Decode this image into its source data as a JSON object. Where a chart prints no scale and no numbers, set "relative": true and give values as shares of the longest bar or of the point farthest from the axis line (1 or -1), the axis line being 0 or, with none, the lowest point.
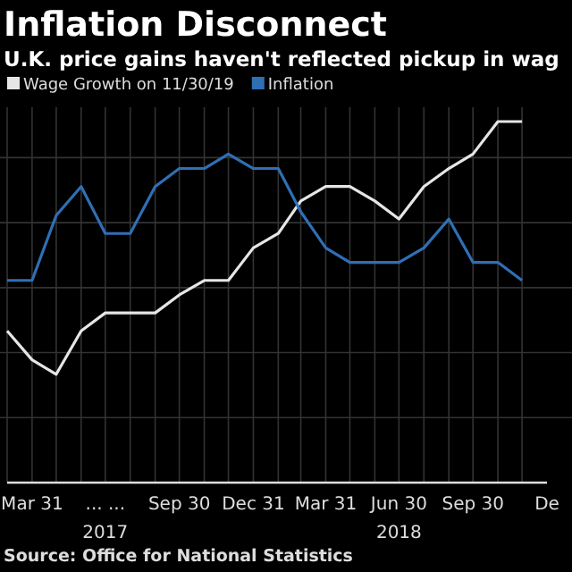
{
  "chart_data": {
    "type": "line",
    "title": "Inflation Disconnect",
    "subtitle": "U.K. price gains haven't reflected pickup in wag",
    "x": [
      "2017-02-28",
      "2017-03-31",
      "2017-04-30",
      "2017-05-31",
      "2017-06-30",
      "2017-07-31",
      "2017-08-31",
      "2017-09-30",
      "2017-10-31",
      "2017-11-30",
      "2017-12-31",
      "2018-01-31",
      "2018-02-28",
      "2018-03-31",
      "2018-04-30",
      "2018-05-31",
      "2018-06-30",
      "2018-07-31",
      "2018-08-31",
      "2018-09-30",
      "2018-10-31",
      "2018-11-30"
    ],
    "series": [
      {
        "name": "Wage Growth on 11/30/19",
        "color": "#e6e6e6",
        "values": [
          0.42,
          0.34,
          0.3,
          0.42,
          0.47,
          0.47,
          0.47,
          0.52,
          0.56,
          0.56,
          0.65,
          0.69,
          0.78,
          0.82,
          0.82,
          0.78,
          0.73,
          0.82,
          0.87,
          0.91,
          1,
          1
        ]
      },
      {
        "name": "Inflation",
        "color": "#2f6fb5",
        "values": [
          0.56,
          0.56,
          0.74,
          0.82,
          0.69,
          0.69,
          0.82,
          0.87,
          0.87,
          0.91,
          0.87,
          0.87,
          0.75,
          0.65,
          0.61,
          0.61,
          0.61,
          0.65,
          0.73,
          0.61,
          0.61,
          0.56
        ]
      }
    ],
    "relative": true,
    "xlim": [
      "2017-02-28",
      "2018-12-31"
    ],
    "xticks": [
      {
        "value": "2017-03-31",
        "label": "Mar 31"
      },
      {
        "value": "2017-06-30",
        "label": "... ..."
      },
      {
        "value": "2017-09-30",
        "label": "Sep 30"
      },
      {
        "value": "2017-12-31",
        "label": "Dec 31"
      },
      {
        "value": "2018-03-31",
        "label": "Mar 31"
      },
      {
        "value": "2018-06-30",
        "label": "Jun 30"
      },
      {
        "value": "2018-09-30",
        "label": "Sep 30"
      },
      {
        "value": "2018-12-31",
        "label": "De"
      }
    ],
    "annotations": [
      "2017",
      "2018",
      "Source: Office for National Statistics"
    ],
    "grid": true,
    "legend": "top left",
    "marker": "none",
    "line_style": "solid"
  }
}
